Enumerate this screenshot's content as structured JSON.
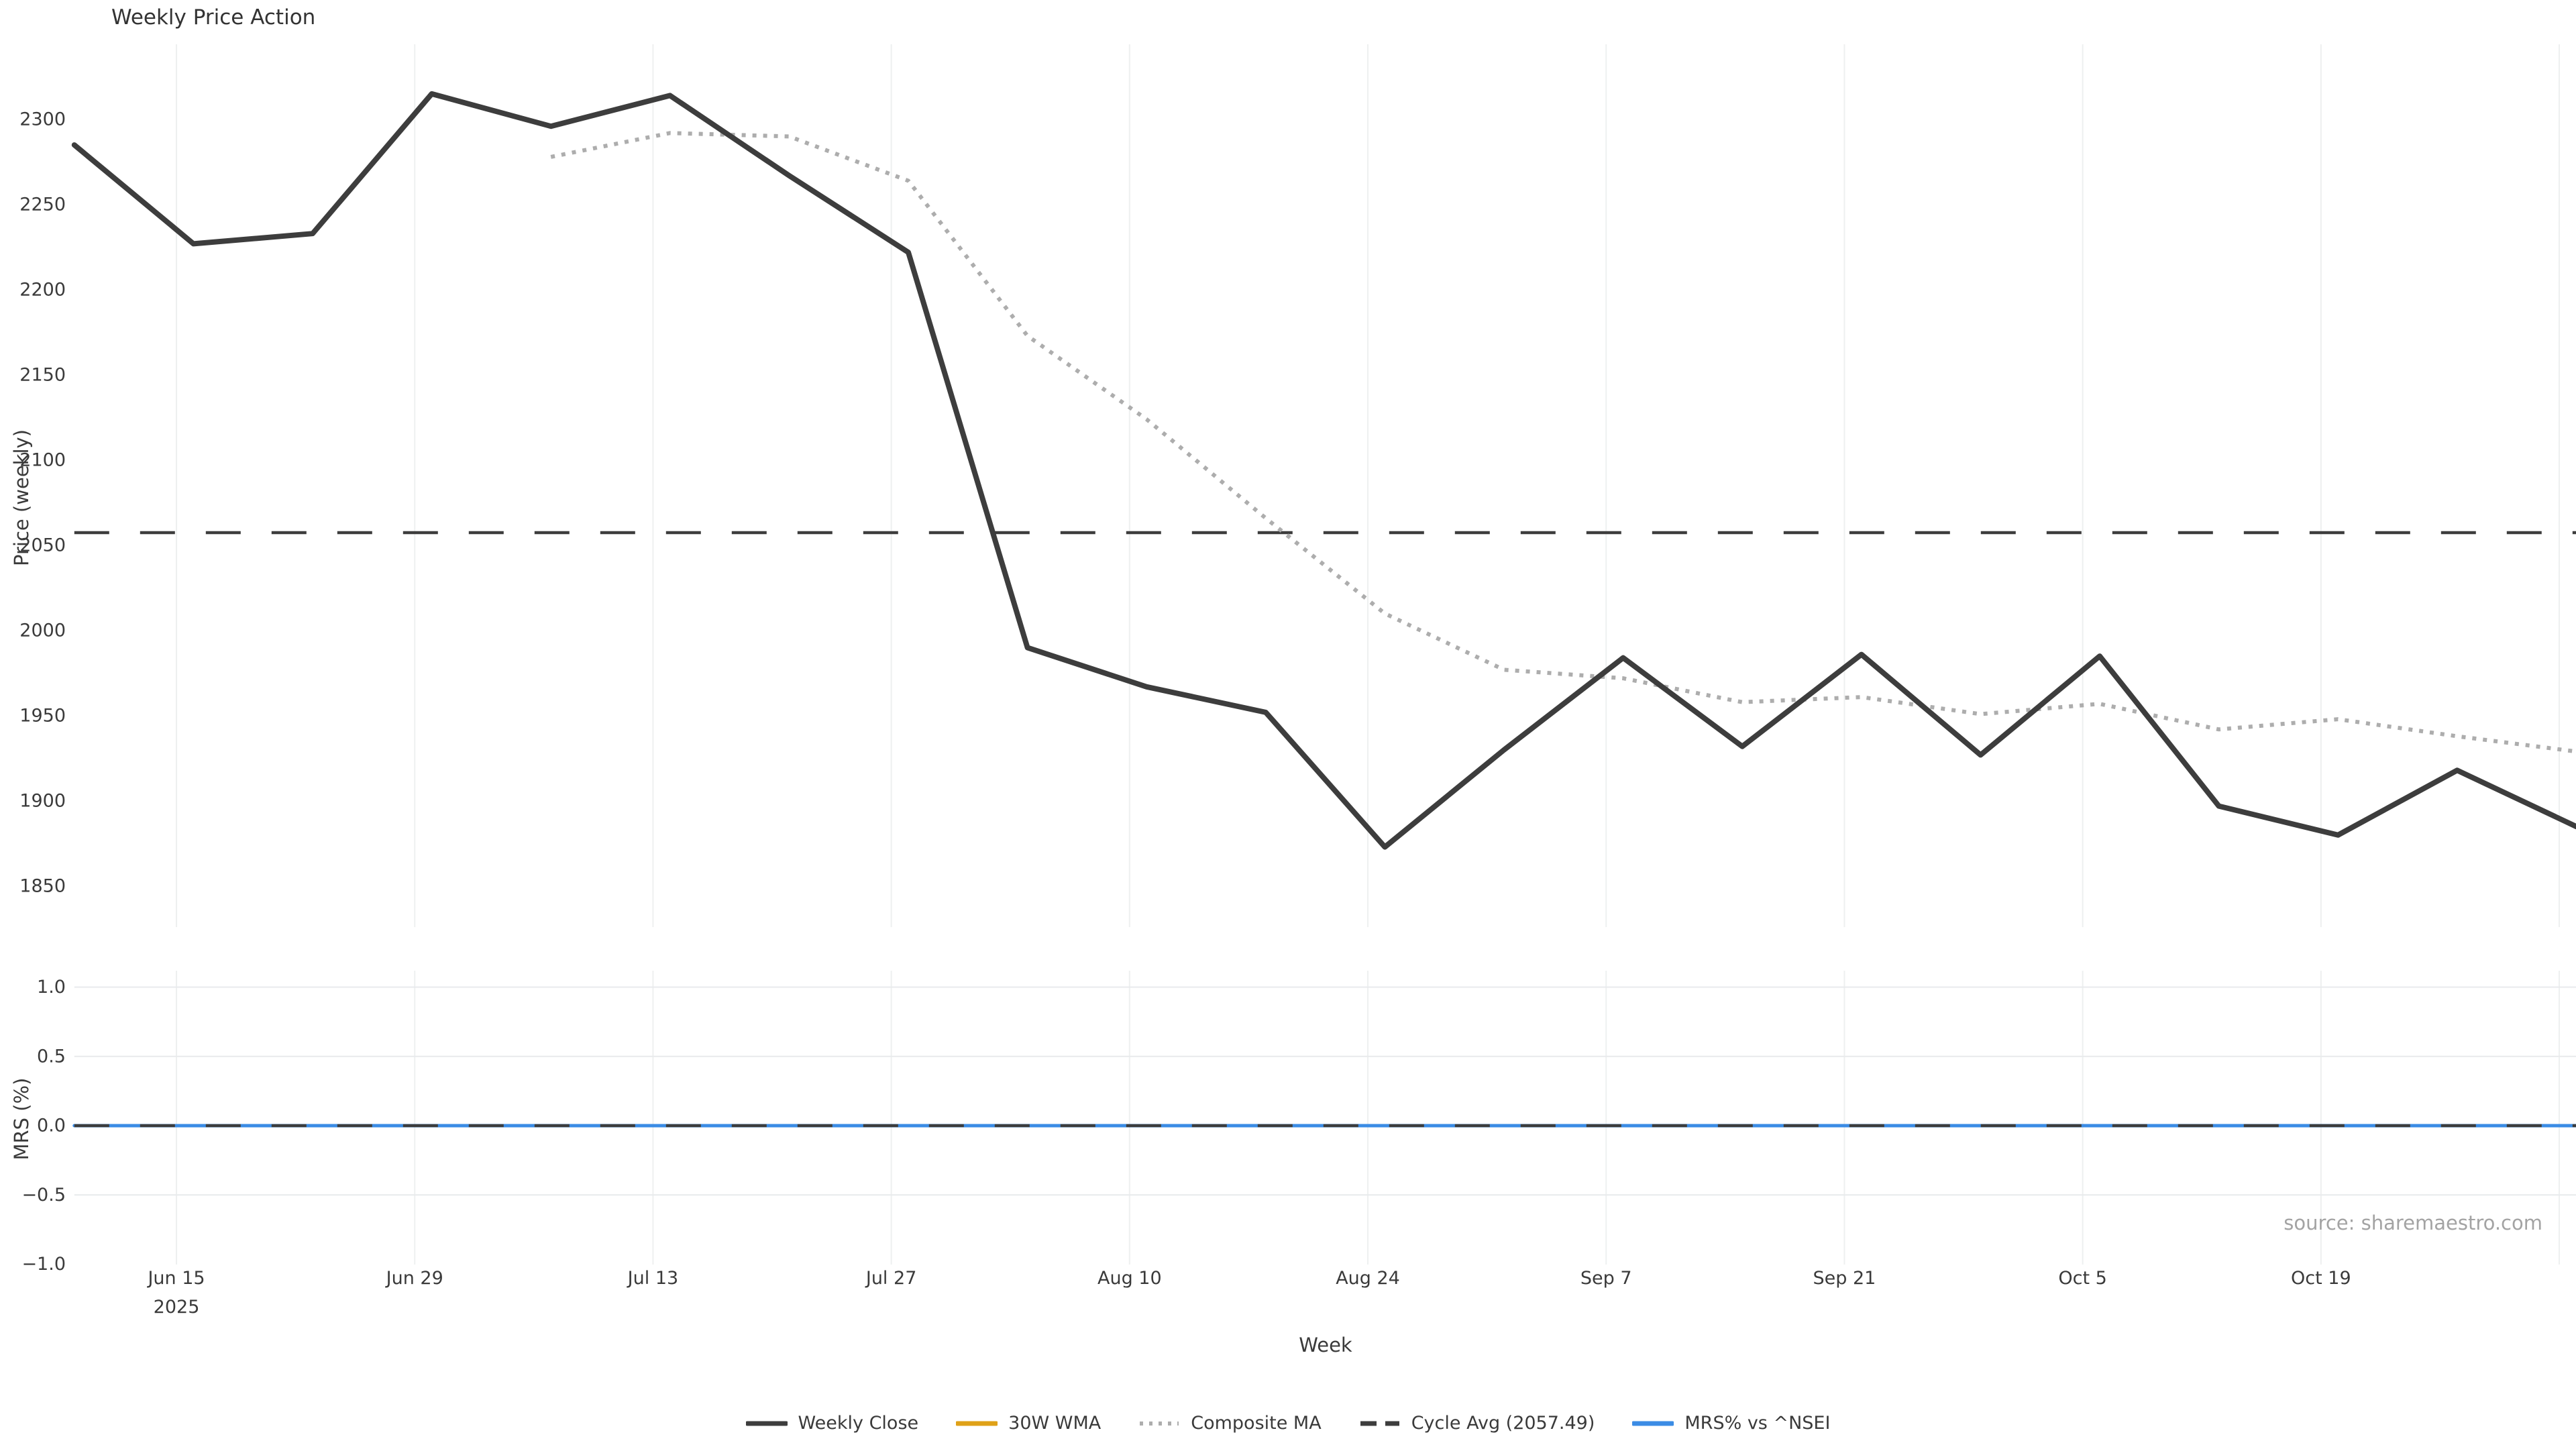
{
  "figure": {
    "title": "Weekly Price Action",
    "source_note": "source: sharemaestro.com",
    "x_axis": {
      "label": "Week",
      "ticks": [
        {
          "label": "Jun 15",
          "sublabel": "2025",
          "day": 6
        },
        {
          "label": "Jun 29",
          "sublabel": "",
          "day": 20
        },
        {
          "label": "Jul 13",
          "sublabel": "",
          "day": 34
        },
        {
          "label": "Jul 27",
          "sublabel": "",
          "day": 48
        },
        {
          "label": "Aug 10",
          "sublabel": "",
          "day": 62
        },
        {
          "label": "Aug 24",
          "sublabel": "",
          "day": 76
        },
        {
          "label": "Sep 7",
          "sublabel": "",
          "day": 90
        },
        {
          "label": "Sep 21",
          "sublabel": "",
          "day": 104
        },
        {
          "label": "Oct 5",
          "sublabel": "",
          "day": 118
        },
        {
          "label": "Oct 19",
          "sublabel": "",
          "day": 132
        },
        {
          "label": "",
          "sublabel": "",
          "day": 146
        }
      ]
    },
    "price_panel": {
      "ylabel": "Price (weekly)",
      "yticks": [
        "2300",
        "2250",
        "2200",
        "2150",
        "2100",
        "2050",
        "2000",
        "1950",
        "1900",
        "1850"
      ],
      "ytick_values": [
        2300,
        2250,
        2200,
        2150,
        2100,
        2050,
        2000,
        1950,
        1900,
        1850
      ],
      "ylim": [
        1826,
        2344
      ],
      "grid": "vertical-only"
    },
    "mrs_panel": {
      "ylabel": "MRS (%)",
      "yticks": [
        "1.0",
        "0.5",
        "0.0",
        "−0.5",
        "−1.0"
      ],
      "ytick_values": [
        1.0,
        0.5,
        0.0,
        -0.5,
        -1.0
      ],
      "hgrid_values": [
        1.0,
        0.5,
        -0.5
      ],
      "ylim": [
        -1.0,
        1.12
      ],
      "grid": "both"
    }
  },
  "chart_data": [
    {
      "type": "line",
      "panel": "price",
      "name": "Weekly Close",
      "style": "solid",
      "color": "#3d3d3d",
      "x_days": [
        0,
        7,
        14,
        21,
        28,
        35,
        42,
        49,
        56,
        63,
        70,
        77,
        84,
        91,
        98,
        105,
        112,
        119,
        126,
        133,
        140,
        147
      ],
      "values": [
        2285,
        2227,
        2233,
        2315,
        2296,
        2314,
        2267,
        2222,
        1990,
        1967,
        1952,
        1873,
        1930,
        1984,
        1932,
        1986,
        1927,
        1985,
        1897,
        1880,
        1918,
        1885
      ]
    },
    {
      "type": "line",
      "panel": "price",
      "name": "Composite MA",
      "style": "dotted",
      "color": "#adadad",
      "x_days": [
        28,
        35,
        42,
        49,
        56,
        63,
        70,
        77,
        84,
        91,
        98,
        105,
        112,
        119,
        126,
        133,
        140,
        147
      ],
      "values": [
        2278,
        2292,
        2290,
        2264,
        2173,
        2124,
        2066,
        2010,
        1977,
        1972,
        1958,
        1961,
        1951,
        1957,
        1942,
        1948,
        1938,
        1929
      ]
    },
    {
      "type": "hline",
      "panel": "price",
      "name": "Cycle Avg (2057.49)",
      "style": "dashed",
      "color": "#3d3d3d",
      "value": 2057.49
    },
    {
      "type": "line",
      "panel": "mrs",
      "name": "MRS% vs ^NSEI",
      "style": "solid",
      "color": "#3b8ce5",
      "x_days": [
        0,
        147
      ],
      "values": [
        0,
        0
      ]
    },
    {
      "type": "hline",
      "panel": "mrs",
      "name": "MRS zero line",
      "style": "dashed",
      "color": "#3d3d3d",
      "value": 0
    }
  ],
  "legend": [
    {
      "label": "Weekly Close",
      "style": "solid",
      "color": "#3d3d3d"
    },
    {
      "label": "30W WMA",
      "style": "solid",
      "color": "#dfa118"
    },
    {
      "label": "Composite MA",
      "style": "dotted",
      "color": "#adadad"
    },
    {
      "label": "Cycle Avg (2057.49)",
      "style": "dashed",
      "color": "#3d3d3d"
    },
    {
      "label": "MRS% vs ^NSEI",
      "style": "solid",
      "color": "#3b8ce5"
    }
  ],
  "colors": {
    "grid_vertical": "#eef0f0",
    "grid_horizontal": "#e8eaec",
    "tick_text": "#3a3a3a",
    "title_text": "#333333",
    "source_text": "#a3a3a3",
    "background": "#ffffff"
  }
}
